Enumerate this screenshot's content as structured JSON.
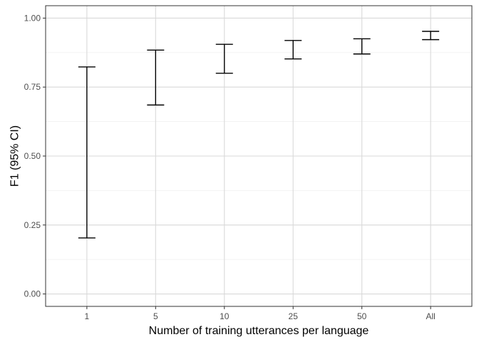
{
  "chart_data": {
    "type": "errorbar",
    "categories": [
      "1",
      "5",
      "10",
      "25",
      "50",
      "All"
    ],
    "series": [
      {
        "lower": [
          0.203,
          0.685,
          0.8,
          0.852,
          0.87,
          0.922
        ],
        "upper": [
          0.823,
          0.884,
          0.905,
          0.919,
          0.925,
          0.952
        ]
      }
    ],
    "xlabel": "Number of training utterances per language",
    "ylabel": "F1 (95% CI)",
    "ylim": [
      -0.045,
      1.045
    ],
    "yticks": [
      0.0,
      0.25,
      0.5,
      0.75,
      1.0
    ],
    "ytick_labels": [
      "0.00",
      "0.25",
      "0.50",
      "0.75",
      "1.00"
    ],
    "grid": true,
    "legend": "none"
  }
}
